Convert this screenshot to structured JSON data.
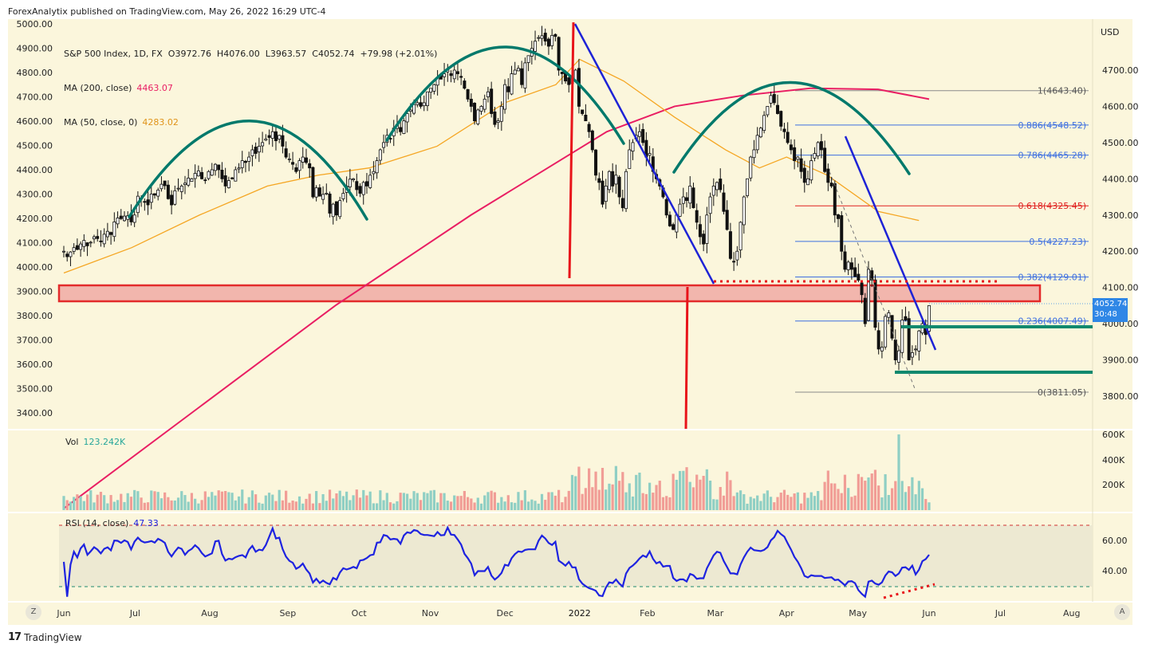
{
  "header": {
    "publisher": "ForexAnalytix published on TradingView.com, May 26, 2022 16:29 UTC-4"
  },
  "footer": {
    "logo": "17",
    "brand": "TradingView"
  },
  "legend": {
    "symbol": "S&P 500 Index, 1D, FX",
    "ohlc": "O3972.76  H4076.00  L3963.57  C4052.74  +79.98 (+2.01%)",
    "ma200_label": "MA (200, close)",
    "ma200_value": "4463.07",
    "ma50_label": "MA (50, close, 0)",
    "ma50_value": "4283.02",
    "vol_label": "Vol",
    "vol_value": "123.242K",
    "rsi_label": "RSI (14, close)",
    "rsi_value": "47.33"
  },
  "currency": "USD",
  "last_price": {
    "value": "4052.74",
    "countdown": "30:48"
  },
  "buttons": {
    "left": "Z",
    "right": "A"
  },
  "colors": {
    "bg": "#fbf6dc",
    "up": "#26a69a",
    "down": "#ef5350",
    "candle": "#111111",
    "ma200": "#e91e63",
    "ma50": "#f5a623",
    "arc": "#00796b",
    "trend_blue": "#1e23d6",
    "red_line": "#e8141a",
    "zone_fill": "#f2b6ad",
    "zone_border": "#e32b2b",
    "support_green": "#10896e",
    "fib_grey": "#8a8a8a",
    "fib_blue": "#3d6fe0",
    "fib_red": "#e02020",
    "rsi": "#1e23e0"
  },
  "chart_data": [
    {
      "type": "candlestick",
      "title": "S&P 500 Index, 1D, FX",
      "left_axis_ticks": [
        "5000.00",
        "4900.00",
        "4800.00",
        "4700.00",
        "4600.00",
        "4500.00",
        "4400.00",
        "4300.00",
        "4200.00",
        "4100.00",
        "4000.00",
        "3900.00",
        "3800.00",
        "3700.00",
        "3600.00",
        "3500.00",
        "3400.00"
      ],
      "right_axis_ticks": [
        "4700.00",
        "4600.00",
        "4500.00",
        "4400.00",
        "4300.00",
        "4200.00",
        "4100.00",
        "4000.00",
        "3900.00",
        "3800.00"
      ],
      "x_ticks": [
        "Jun",
        "Jul",
        "Aug",
        "Sep",
        "Oct",
        "Nov",
        "Dec",
        "2022",
        "Feb",
        "Mar",
        "Apr",
        "May",
        "Jun",
        "Jul",
        "Aug"
      ],
      "x_range": [
        0,
        265
      ],
      "x_tick_positions": [
        0,
        21,
        43,
        66,
        87,
        108,
        130,
        152,
        172,
        192,
        213,
        234,
        255,
        276,
        297
      ],
      "ylim": [
        3380,
        5000
      ],
      "fib_levels": [
        {
          "label": "1(4643.40)",
          "value": 4643.4
        },
        {
          "label": "0.886(4548.52)",
          "value": 4548.52
        },
        {
          "label": "0.786(4465.28)",
          "value": 4465.28
        },
        {
          "label": "0.618(4325.45)",
          "value": 4325.45
        },
        {
          "label": "0.5(4227.23)",
          "value": 4227.23
        },
        {
          "label": "0.382(4129.01)",
          "value": 4129.01
        },
        {
          "label": "0.236(4007.49)",
          "value": 4007.49
        },
        {
          "label": "0(3811.05)",
          "value": 3811.05
        }
      ],
      "close_series": [
        4200,
        4185,
        4198,
        4210,
        4205,
        4220,
        4230,
        4215,
        4225,
        4240,
        4235,
        4226,
        4247,
        4255,
        4246,
        4281,
        4292,
        4290,
        4297,
        4298,
        4281,
        4300,
        4352,
        4345,
        4335,
        4328,
        4358,
        4355,
        4369,
        4385,
        4381,
        4345,
        4328,
        4367,
        4374,
        4380,
        4388,
        4402,
        4400,
        4415,
        4422,
        4400,
        4395,
        4420,
        4425,
        4440,
        4425,
        4400,
        4380,
        4395,
        4400,
        4425,
        4430,
        4450,
        4445,
        4460,
        4480,
        4470,
        4490,
        4500,
        4510,
        4514,
        4530,
        4505,
        4520,
        4490,
        4460,
        4455,
        4440,
        4420,
        4450,
        4460,
        4445,
        4430,
        4350,
        4375,
        4352,
        4357,
        4360,
        4305,
        4330,
        4300,
        4340,
        4360,
        4380,
        4399,
        4400,
        4370,
        4360,
        4390,
        4380,
        4410,
        4420,
        4450,
        4480,
        4500,
        4520,
        4510,
        4540,
        4550,
        4530,
        4560,
        4580,
        4590,
        4605,
        4610,
        4600,
        4610,
        4640,
        4650,
        4660,
        4680,
        4675,
        4690,
        4700,
        4685,
        4700,
        4690,
        4680,
        4650,
        4620,
        4600,
        4560,
        4590,
        4600,
        4620,
        4640,
        4580,
        4550,
        4560,
        4600,
        4660,
        4640,
        4690,
        4700,
        4705,
        4660,
        4720,
        4740,
        4760,
        4780,
        4790,
        4795,
        4780,
        4766,
        4796,
        4793,
        4700,
        4690,
        4670,
        4660,
        4680,
        4700,
        4600,
        4580,
        4560,
        4530,
        4480,
        4410,
        4390,
        4330,
        4380,
        4420,
        4380,
        4410,
        4350,
        4320,
        4420,
        4480,
        4500,
        4520,
        4530,
        4500,
        4460,
        4470,
        4420,
        4400,
        4380,
        4350,
        4300,
        4270,
        4260,
        4300,
        4330,
        4350,
        4340,
        4380,
        4320,
        4280,
        4240,
        4220,
        4300,
        4350,
        4380,
        4390,
        4370,
        4310,
        4260,
        4180,
        4170,
        4200,
        4280,
        4350,
        4400,
        4460,
        4480,
        4520,
        4540,
        4575,
        4600,
        4630,
        4610,
        4580,
        4545,
        4530,
        4500,
        4480,
        4450,
        4460,
        4420,
        4390,
        4400,
        4450,
        4470,
        4500,
        4480,
        4420,
        4390,
        4380,
        4300,
        4290,
        4200,
        4150,
        4170,
        4150,
        4130,
        4120,
        4080,
        4000,
        4150,
        4120,
        3990,
        3930,
        3935,
        4020,
        4030,
        3960,
        3900,
        3925,
        4010,
        4010,
        3900,
        3920,
        3930,
        3980,
        4000,
        3970,
        4050
      ],
      "note_series": "close_series values in index points, one per trading day from Jun 2021 to May 26 2022"
    },
    {
      "type": "bar",
      "title": "Vol",
      "ticks": [
        "600K",
        "400K",
        "200K"
      ],
      "last_value": "123.242K"
    },
    {
      "type": "line",
      "title": "RSI (14, close)",
      "ticks": [
        "60.00",
        "40.00"
      ],
      "ylim": [
        22,
        82
      ],
      "bands": [
        70,
        30
      ],
      "last_value": "47.33"
    }
  ]
}
